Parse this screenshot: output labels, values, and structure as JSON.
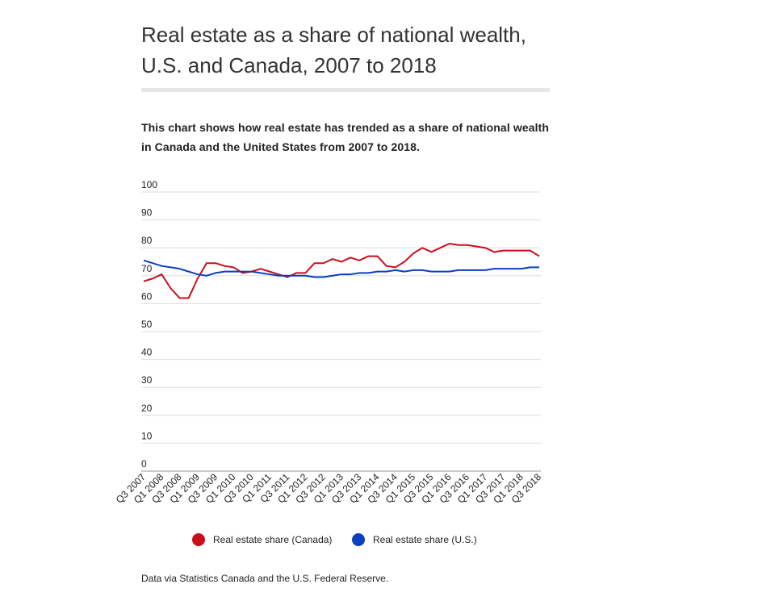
{
  "chart_data": {
    "type": "line",
    "title": "Real estate as a share of national wealth, U.S. and Canada, 2007 to 2018",
    "subtitle": "This chart shows how real estate has trended as a share of national wealth in Canada and the United States from 2007 to 2018.",
    "note": "Data via Statistics Canada and the U.S. Federal Reserve.",
    "categories": [
      "Q3 2007",
      null,
      "Q1 2008",
      null,
      "Q3 2008",
      null,
      "Q1 2009",
      null,
      "Q3 2009",
      null,
      "Q1 2010",
      null,
      "Q3 2010",
      null,
      "Q1 2011",
      null,
      "Q3 2011",
      null,
      "Q1 2012",
      null,
      "Q3 2012",
      null,
      "Q1 2013",
      null,
      "Q3 2013",
      null,
      "Q1 2014",
      null,
      "Q3 2014",
      null,
      "Q1 2015",
      null,
      "Q3 2015",
      null,
      "Q1 2016",
      null,
      "Q3 2016",
      null,
      "Q1 2017",
      null,
      "Q3 2017",
      null,
      "Q1 2018",
      null,
      "Q3 2018"
    ],
    "series": [
      {
        "name": "Real estate share (Canada)",
        "color": "#cc0d1c",
        "values": [
          68,
          69,
          70.5,
          65.5,
          62,
          62,
          69,
          74.5,
          74.5,
          73.5,
          73,
          71,
          71.5,
          72.5,
          71.5,
          70.5,
          69.5,
          71,
          71,
          74.5,
          74.5,
          76,
          75,
          76.5,
          75.5,
          77,
          77,
          73.5,
          73,
          75,
          78,
          80,
          78.5,
          80,
          81.5,
          81,
          81,
          80.5,
          80,
          78.5,
          79,
          79,
          79,
          79,
          77
        ]
      },
      {
        "name": "Real estate share (U.S.)",
        "color": "#0a3fc0",
        "values": [
          75.5,
          74.5,
          73.5,
          73,
          72.5,
          71.5,
          70.5,
          70,
          71,
          71.5,
          71.5,
          71.5,
          71.5,
          71,
          70.5,
          70,
          70,
          70,
          70,
          69.5,
          69.5,
          70,
          70.5,
          70.5,
          71,
          71,
          71.5,
          71.5,
          72,
          71.5,
          72,
          72,
          71.5,
          71.5,
          71.5,
          72,
          72,
          72,
          72,
          72.5,
          72.5,
          72.5,
          72.5,
          73,
          73
        ]
      }
    ],
    "ylim": [
      0,
      100
    ],
    "yticks": [
      0,
      10,
      20,
      30,
      40,
      50,
      60,
      70,
      80,
      90,
      100
    ],
    "grid": true
  }
}
